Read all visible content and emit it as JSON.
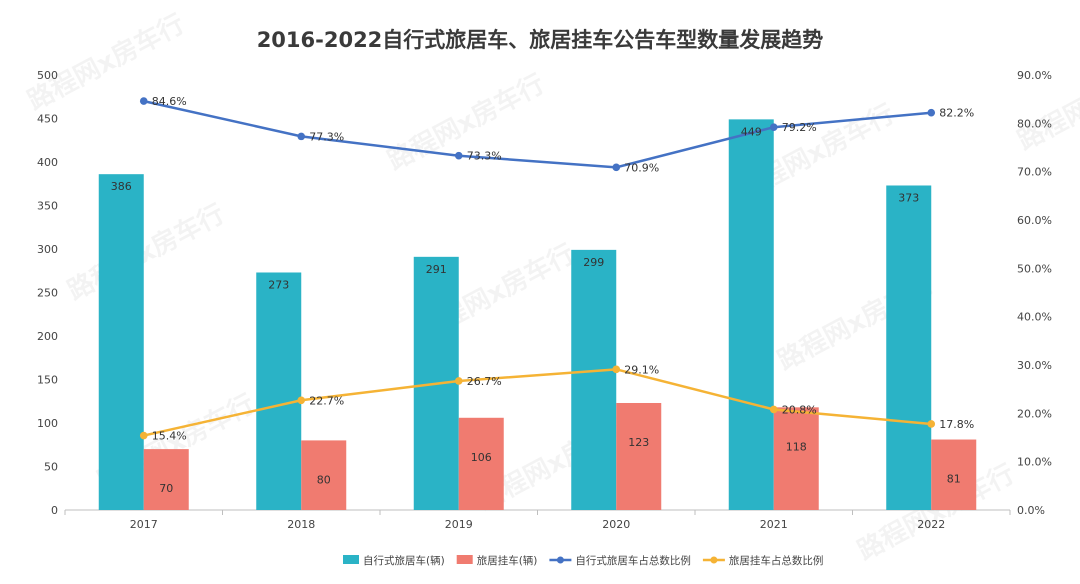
{
  "chart_data": {
    "type": "bar",
    "title": "2016-2022自行式旅居车、旅居挂车公告车型数量发展趋势",
    "categories": [
      "2017",
      "2018",
      "2019",
      "2020",
      "2021",
      "2022"
    ],
    "y_left": {
      "min": 0,
      "max": 500,
      "step": 50
    },
    "y_right": {
      "min": 0,
      "max": 90,
      "step": 10,
      "format": "percent"
    },
    "grid": false,
    "legend_position": "bottom",
    "series": [
      {
        "name": "自行式旅居车(辆)",
        "kind": "bar",
        "axis": "left",
        "color": "#2ab3c6",
        "values": [
          386,
          273,
          291,
          299,
          449,
          373
        ]
      },
      {
        "name": "旅居挂车(辆)",
        "kind": "bar",
        "axis": "left",
        "color": "#f07b70",
        "values": [
          70,
          80,
          106,
          123,
          118,
          81
        ]
      },
      {
        "name": "自行式旅居车占总数比例",
        "kind": "line",
        "axis": "right",
        "color": "#4472c4",
        "values": [
          84.6,
          77.3,
          73.3,
          70.9,
          79.2,
          82.2
        ],
        "labels": [
          "84.6%",
          "77.3%",
          "73.3%",
          "70.9%",
          "79.2%",
          "82.2%"
        ]
      },
      {
        "name": "旅居挂车占总数比例",
        "kind": "line",
        "axis": "right",
        "color": "#f5b335",
        "values": [
          15.4,
          22.7,
          26.7,
          29.1,
          20.8,
          17.8
        ],
        "labels": [
          "15.4%",
          "22.7%",
          "26.7%",
          "29.1%",
          "20.8%",
          "17.8%"
        ]
      }
    ]
  },
  "watermark": "路程网x房车行"
}
